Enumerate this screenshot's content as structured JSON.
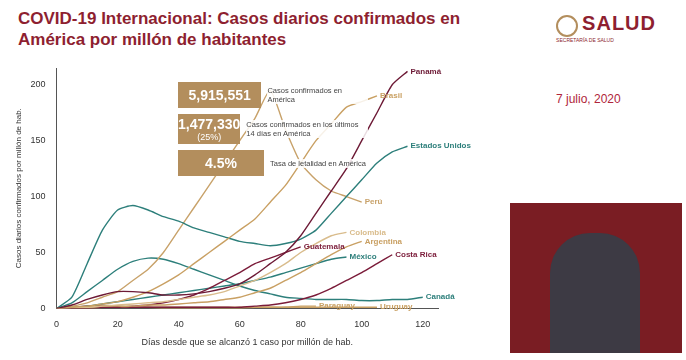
{
  "header": {
    "title": "COVID-19 Internacional: Casos diarios confirmados en América por millón de habitantes",
    "logo": "SALUD",
    "logo_subtitle": "SECRETARÍA DE SALUD",
    "date": "7 julio, 2020"
  },
  "stats": [
    {
      "value": "5,915,551",
      "label": "Casos confirmados en América"
    },
    {
      "value": "1,477,330",
      "share": "(25%)",
      "label": "Casos confirmados en los últimos 14 días en América"
    },
    {
      "value": "4.5%",
      "label": "Tasa de letalidad en América"
    }
  ],
  "chart_data": {
    "type": "line",
    "x_label": "Días desde que se alcanzó 1 caso por millón de hab.",
    "y_label": "Casos diarios confirmados por millón de hab.",
    "x": [
      0,
      5,
      10,
      15,
      20,
      25,
      30,
      35,
      40,
      45,
      50,
      55,
      60,
      65,
      70,
      75,
      80,
      85,
      90,
      95,
      100,
      105,
      110,
      115,
      120
    ],
    "xlim": [
      0,
      125
    ],
    "xticks": [
      0,
      20,
      40,
      60,
      80,
      100,
      120
    ],
    "ylim": [
      0,
      215
    ],
    "yticks": [
      0,
      50,
      100,
      150,
      200
    ],
    "grid": false,
    "marker": "none",
    "line_style": "solid",
    "series": [
      {
        "name": "Panamá",
        "color": "#6d1a36",
        "values": [
          0,
          3,
          8,
          12,
          15,
          15,
          14,
          12,
          12,
          13,
          15,
          18,
          22,
          30,
          40,
          50,
          65,
          85,
          105,
          125,
          150,
          175,
          200,
          212,
          null
        ]
      },
      {
        "name": "Brasil",
        "color": "#c9a063",
        "values": [
          0,
          1,
          2,
          4,
          6,
          10,
          15,
          22,
          30,
          40,
          50,
          60,
          70,
          80,
          95,
          110,
          130,
          150,
          165,
          180,
          185,
          190,
          null,
          null,
          null
        ]
      },
      {
        "name": "Estados Unidos",
        "color": "#2d7f7b",
        "values": [
          0,
          10,
          40,
          70,
          88,
          92,
          88,
          82,
          78,
          72,
          68,
          64,
          60,
          58,
          56,
          58,
          62,
          70,
          85,
          100,
          115,
          130,
          140,
          145,
          null
        ]
      },
      {
        "name": "Perú",
        "color": "#c8a26a",
        "values": [
          0,
          2,
          5,
          10,
          15,
          25,
          35,
          50,
          70,
          90,
          110,
          130,
          150,
          170,
          195,
          160,
          130,
          115,
          105,
          100,
          95,
          null,
          null,
          null,
          null
        ]
      },
      {
        "name": "Colombia",
        "color": "#d9bc8c",
        "values": [
          0,
          1,
          1,
          2,
          3,
          4,
          5,
          6,
          8,
          10,
          12,
          15,
          20,
          25,
          32,
          40,
          50,
          58,
          65,
          68,
          null,
          null,
          null,
          null,
          null
        ]
      },
      {
        "name": "Argentina",
        "color": "#c9a063",
        "values": [
          0,
          1,
          1,
          2,
          2,
          2,
          3,
          3,
          4,
          5,
          6,
          8,
          10,
          14,
          18,
          25,
          32,
          40,
          48,
          55,
          60,
          null,
          null,
          null,
          null
        ]
      },
      {
        "name": "Guatemala",
        "color": "#7b1c3a",
        "values": [
          0,
          0,
          0,
          1,
          1,
          2,
          3,
          5,
          8,
          12,
          18,
          25,
          32,
          40,
          45,
          50,
          55,
          null,
          null,
          null,
          null,
          null,
          null,
          null,
          null
        ]
      },
      {
        "name": "México",
        "color": "#2d7f7b",
        "values": [
          0,
          1,
          2,
          4,
          6,
          8,
          10,
          12,
          14,
          16,
          18,
          20,
          22,
          25,
          28,
          32,
          36,
          40,
          44,
          46,
          null,
          null,
          null,
          null,
          null
        ]
      },
      {
        "name": "Costa Rica",
        "color": "#7b1c3a",
        "values": [
          0,
          1,
          2,
          2,
          2,
          1,
          1,
          1,
          1,
          1,
          1,
          1,
          1,
          2,
          3,
          5,
          8,
          12,
          18,
          25,
          32,
          40,
          48,
          null,
          null
        ]
      },
      {
        "name": "Canadá",
        "color": "#2d7f7b",
        "values": [
          0,
          5,
          15,
          25,
          35,
          42,
          45,
          44,
          40,
          35,
          30,
          25,
          20,
          16,
          13,
          10,
          9,
          8,
          8,
          8,
          7,
          7,
          8,
          8,
          10
        ]
      },
      {
        "name": "Paraguay",
        "color": "#c9a063",
        "values": [
          0,
          0,
          0,
          1,
          1,
          1,
          1,
          1,
          1,
          1,
          1,
          1,
          1,
          1,
          1,
          1,
          2,
          2,
          null,
          null,
          null,
          null,
          null,
          null,
          null
        ]
      },
      {
        "name": "Uruguay",
        "color": "#c9a063",
        "values": [
          0,
          1,
          2,
          3,
          2,
          1,
          1,
          0,
          0,
          0,
          0,
          0,
          0,
          1,
          1,
          1,
          1,
          1,
          1,
          1,
          1,
          1,
          null,
          null,
          null
        ]
      }
    ]
  }
}
